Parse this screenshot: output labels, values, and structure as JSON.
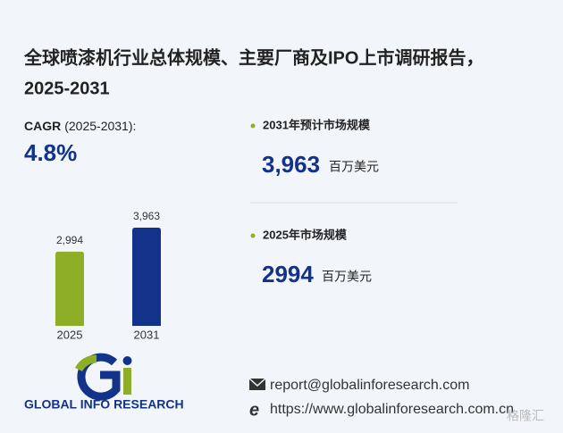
{
  "header": {
    "title_line1": "全球喷漆机行业总体规模、主要厂商及IPO上市调研报告，",
    "title_line2": "2025-2031"
  },
  "cagr": {
    "label": "CAGR",
    "period": "(2025-2031):",
    "value": "4.8%"
  },
  "stats": [
    {
      "label": "2031年预计市场规模",
      "value": "3,963",
      "unit": "百万美元"
    },
    {
      "label": "2025年市场规模",
      "value": "2994",
      "unit": "百万美元"
    }
  ],
  "chart_data": {
    "type": "bar",
    "categories": [
      "2025",
      "2031"
    ],
    "values": [
      2994,
      3963
    ],
    "value_labels": [
      "2,994",
      "3,963"
    ],
    "colors": [
      "#8fae27",
      "#13328a"
    ]
  },
  "footer": {
    "brand": "GLOBAL INFO RESEARCH",
    "email": "report@globalinforesearch.com",
    "website": "https://www.globalinforesearch.com.cn",
    "watermark": "格隆汇"
  }
}
